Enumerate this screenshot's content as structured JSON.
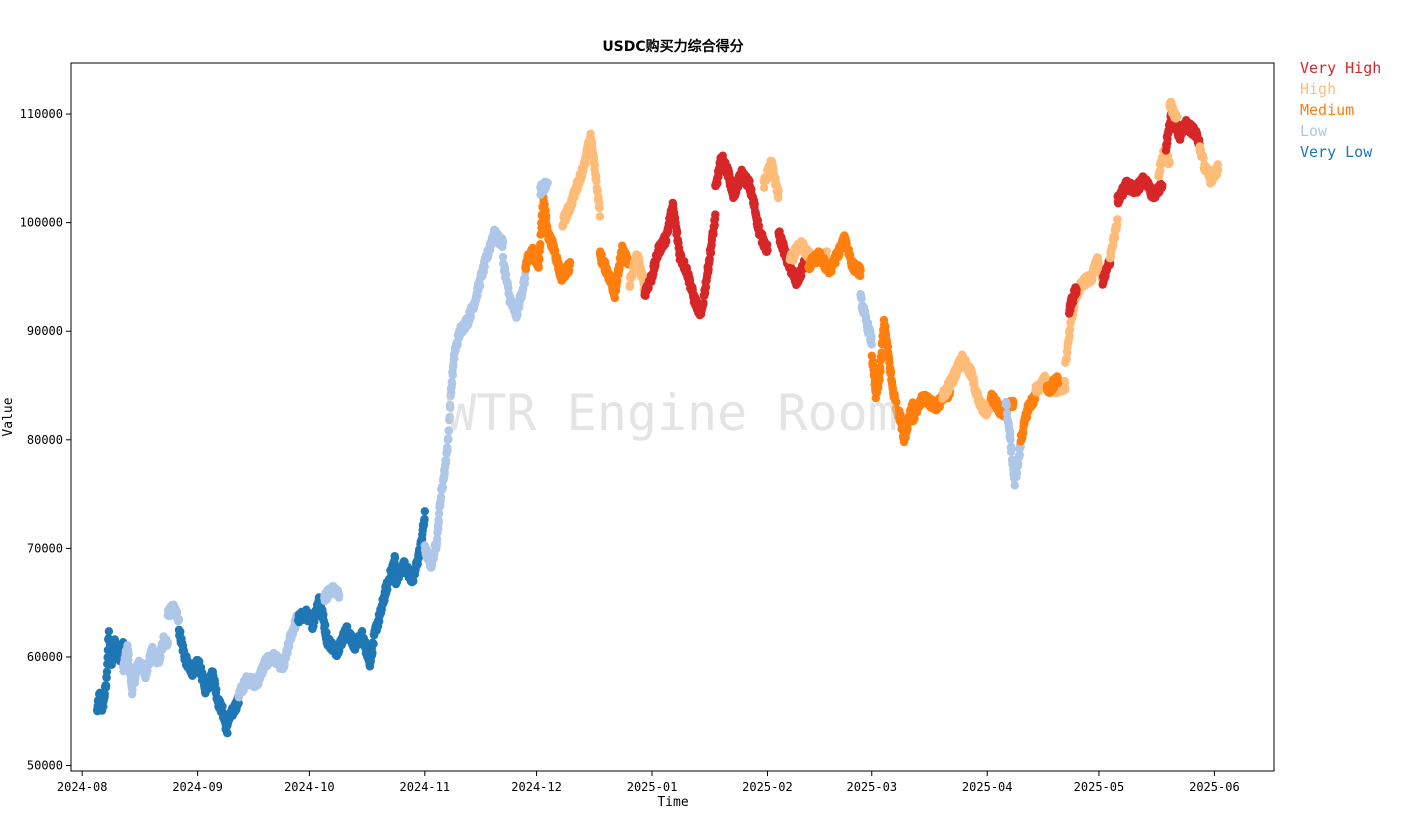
{
  "chart_data": {
    "type": "scatter",
    "title": "USDC购买力综合得分",
    "xlabel": "Time",
    "ylabel": "Value",
    "watermark": "WTR Engine Room",
    "xlim": [
      "2024-07-29",
      "2025-06-17"
    ],
    "ylim": [
      49500,
      114700
    ],
    "x_ticks": [
      "2024-08-01",
      "2024-09-01",
      "2024-10-01",
      "2024-11-01",
      "2024-12-01",
      "2025-01-01",
      "2025-02-01",
      "2025-03-01",
      "2025-04-01",
      "2025-05-01",
      "2025-06-01"
    ],
    "x_tick_labels": [
      "2024-08",
      "2024-09",
      "2024-10",
      "2024-11",
      "2024-12",
      "2025-01",
      "2025-02",
      "2025-03",
      "2025-04",
      "2025-05",
      "2025-06"
    ],
    "y_ticks": [
      50000,
      60000,
      70000,
      80000,
      90000,
      100000,
      110000
    ],
    "y_tick_labels": [
      "50000",
      "60000",
      "70000",
      "80000",
      "90000",
      "100000",
      "110000"
    ],
    "legend_position": "outside-top-right",
    "categories": [
      "Very High",
      "High",
      "Medium",
      "Low",
      "Very Low"
    ],
    "colors": {
      "Very High": "#d62728",
      "High": "#ffbb78",
      "Medium": "#ff7f0e",
      "Low": "#aec7e8",
      "Very Low": "#1f77b4"
    },
    "series": [
      {
        "start": "2024-08-05",
        "end": "2024-08-12",
        "category": "Very Low",
        "path": [
          [
            0,
            55000
          ],
          [
            0.1,
            56500
          ],
          [
            0.2,
            55200
          ],
          [
            0.35,
            57500
          ],
          [
            0.45,
            62200
          ],
          [
            0.55,
            59500
          ],
          [
            0.7,
            61500
          ],
          [
            0.85,
            59800
          ],
          [
            1,
            61000
          ]
        ]
      },
      {
        "start": "2024-08-12",
        "end": "2024-08-24",
        "category": "Low",
        "path": [
          [
            0,
            59000
          ],
          [
            0.1,
            60800
          ],
          [
            0.2,
            57000
          ],
          [
            0.35,
            59500
          ],
          [
            0.5,
            58500
          ],
          [
            0.65,
            60500
          ],
          [
            0.8,
            59500
          ],
          [
            0.9,
            61500
          ],
          [
            1,
            61000
          ]
        ]
      },
      {
        "start": "2024-08-24",
        "end": "2024-08-27",
        "category": "Low",
        "path": [
          [
            0,
            64000
          ],
          [
            0.5,
            64500
          ],
          [
            1,
            63500
          ]
        ]
      },
      {
        "start": "2024-08-27",
        "end": "2024-09-09",
        "category": "Very Low",
        "path": [
          [
            0,
            62500
          ],
          [
            0.12,
            60000
          ],
          [
            0.25,
            58500
          ],
          [
            0.4,
            59500
          ],
          [
            0.55,
            57000
          ],
          [
            0.7,
            58500
          ],
          [
            0.8,
            56000
          ],
          [
            0.9,
            55000
          ],
          [
            1,
            53000
          ]
        ]
      },
      {
        "start": "2024-09-09",
        "end": "2024-09-12",
        "category": "Very Low",
        "path": [
          [
            0,
            54000
          ],
          [
            0.5,
            55000
          ],
          [
            1,
            56000
          ]
        ]
      },
      {
        "start": "2024-09-12",
        "end": "2024-09-28",
        "category": "Low",
        "path": [
          [
            0,
            56500
          ],
          [
            0.15,
            58000
          ],
          [
            0.3,
            57500
          ],
          [
            0.45,
            59500
          ],
          [
            0.6,
            60000
          ],
          [
            0.75,
            59000
          ],
          [
            0.88,
            62000
          ],
          [
            1,
            63800
          ]
        ]
      },
      {
        "start": "2024-09-28",
        "end": "2024-10-24",
        "category": "Very Low",
        "path": [
          [
            0,
            63500
          ],
          [
            0.08,
            64000
          ],
          [
            0.15,
            63000
          ],
          [
            0.22,
            65500
          ],
          [
            0.3,
            61500
          ],
          [
            0.4,
            60500
          ],
          [
            0.5,
            62500
          ],
          [
            0.58,
            61000
          ],
          [
            0.66,
            62000
          ],
          [
            0.74,
            59500
          ],
          [
            0.8,
            62500
          ],
          [
            0.85,
            64000
          ],
          [
            0.9,
            66000
          ],
          [
            1,
            69000
          ]
        ]
      },
      {
        "start": "2024-10-05",
        "end": "2024-10-09",
        "category": "Low",
        "path": [
          [
            0,
            65500
          ],
          [
            0.5,
            66200
          ],
          [
            1,
            65800
          ]
        ]
      },
      {
        "start": "2024-10-24",
        "end": "2024-11-01",
        "category": "Very Low",
        "path": [
          [
            0,
            67000
          ],
          [
            0.3,
            68500
          ],
          [
            0.6,
            67000
          ],
          [
            0.85,
            70000
          ],
          [
            1,
            73000
          ]
        ]
      },
      {
        "start": "2024-11-01",
        "end": "2024-11-22",
        "category": "Low",
        "path": [
          [
            0,
            70000
          ],
          [
            0.08,
            68500
          ],
          [
            0.15,
            70500
          ],
          [
            0.2,
            74500
          ],
          [
            0.25,
            77000
          ],
          [
            0.3,
            80000
          ],
          [
            0.33,
            84000
          ],
          [
            0.38,
            88000
          ],
          [
            0.45,
            90000
          ],
          [
            0.55,
            91000
          ],
          [
            0.65,
            93000
          ],
          [
            0.72,
            95000
          ],
          [
            0.8,
            97000
          ],
          [
            0.88,
            99000
          ],
          [
            1,
            98000
          ]
        ]
      },
      {
        "start": "2024-11-22",
        "end": "2024-11-28",
        "category": "Low",
        "path": [
          [
            0,
            96500
          ],
          [
            0.3,
            93000
          ],
          [
            0.6,
            91500
          ],
          [
            1,
            95000
          ]
        ]
      },
      {
        "start": "2024-11-28",
        "end": "2024-12-10",
        "category": "Medium",
        "path": [
          [
            0,
            96000
          ],
          [
            0.15,
            97500
          ],
          [
            0.3,
            96000
          ],
          [
            0.4,
            102500
          ],
          [
            0.5,
            99000
          ],
          [
            0.65,
            97500
          ],
          [
            0.8,
            95000
          ],
          [
            1,
            96000
          ]
        ]
      },
      {
        "start": "2024-12-02",
        "end": "2024-12-04",
        "category": "Low",
        "path": [
          [
            0,
            103000
          ],
          [
            1,
            103500
          ]
        ]
      },
      {
        "start": "2024-12-08",
        "end": "2024-12-18",
        "category": "High",
        "path": [
          [
            0,
            100000
          ],
          [
            0.2,
            101500
          ],
          [
            0.4,
            103500
          ],
          [
            0.6,
            105500
          ],
          [
            0.75,
            108000
          ],
          [
            0.9,
            104000
          ],
          [
            1,
            101000
          ]
        ]
      },
      {
        "start": "2024-12-18",
        "end": "2024-12-26",
        "category": "Medium",
        "path": [
          [
            0,
            97000
          ],
          [
            0.25,
            95500
          ],
          [
            0.5,
            93500
          ],
          [
            0.75,
            97500
          ],
          [
            1,
            96000
          ]
        ]
      },
      {
        "start": "2024-12-26",
        "end": "2024-12-30",
        "category": "High",
        "path": [
          [
            0,
            94500
          ],
          [
            0.5,
            97000
          ],
          [
            1,
            94000
          ]
        ]
      },
      {
        "start": "2024-12-30",
        "end": "2025-01-18",
        "category": "Very High",
        "path": [
          [
            0,
            93500
          ],
          [
            0.1,
            95000
          ],
          [
            0.2,
            97500
          ],
          [
            0.3,
            98500
          ],
          [
            0.4,
            101500
          ],
          [
            0.5,
            97000
          ],
          [
            0.6,
            95500
          ],
          [
            0.7,
            93000
          ],
          [
            0.8,
            91500
          ],
          [
            0.88,
            95000
          ],
          [
            1,
            100500
          ]
        ]
      },
      {
        "start": "2025-01-18",
        "end": "2025-02-01",
        "category": "Very High",
        "path": [
          [
            0,
            103000
          ],
          [
            0.12,
            106000
          ],
          [
            0.25,
            104500
          ],
          [
            0.35,
            102500
          ],
          [
            0.5,
            104500
          ],
          [
            0.65,
            103500
          ],
          [
            0.75,
            101500
          ],
          [
            0.85,
            99000
          ],
          [
            1,
            97500
          ]
        ]
      },
      {
        "start": "2025-01-31",
        "end": "2025-02-04",
        "category": "High",
        "path": [
          [
            0,
            103500
          ],
          [
            0.5,
            105500
          ],
          [
            1,
            102500
          ]
        ]
      },
      {
        "start": "2025-02-04",
        "end": "2025-02-12",
        "category": "Very High",
        "path": [
          [
            0,
            99000
          ],
          [
            0.3,
            96500
          ],
          [
            0.6,
            94500
          ],
          [
            1,
            97000
          ]
        ]
      },
      {
        "start": "2025-02-07",
        "end": "2025-02-17",
        "category": "High",
        "path": [
          [
            0,
            96500
          ],
          [
            0.3,
            98000
          ],
          [
            0.6,
            96500
          ],
          [
            1,
            97000
          ]
        ]
      },
      {
        "start": "2025-02-12",
        "end": "2025-02-26",
        "category": "Medium",
        "path": [
          [
            0,
            96000
          ],
          [
            0.2,
            97000
          ],
          [
            0.4,
            95500
          ],
          [
            0.55,
            97000
          ],
          [
            0.7,
            98500
          ],
          [
            0.85,
            96000
          ],
          [
            1,
            95500
          ]
        ]
      },
      {
        "start": "2025-02-26",
        "end": "2025-03-01",
        "category": "Low",
        "path": [
          [
            0,
            93000
          ],
          [
            1,
            89000
          ]
        ]
      },
      {
        "start": "2025-03-01",
        "end": "2025-03-12",
        "category": "Medium",
        "path": [
          [
            0,
            88000
          ],
          [
            0.1,
            84000
          ],
          [
            0.2,
            86000
          ],
          [
            0.3,
            91000
          ],
          [
            0.4,
            88000
          ],
          [
            0.5,
            85000
          ],
          [
            0.6,
            83000
          ],
          [
            0.7,
            82000
          ],
          [
            0.8,
            80000
          ],
          [
            0.9,
            82000
          ],
          [
            1,
            83000
          ]
        ]
      },
      {
        "start": "2025-03-12",
        "end": "2025-03-22",
        "category": "Medium",
        "path": [
          [
            0,
            82000
          ],
          [
            0.3,
            84000
          ],
          [
            0.6,
            83000
          ],
          [
            1,
            84500
          ]
        ]
      },
      {
        "start": "2025-03-20",
        "end": "2025-04-02",
        "category": "High",
        "path": [
          [
            0,
            84000
          ],
          [
            0.2,
            85500
          ],
          [
            0.4,
            87500
          ],
          [
            0.6,
            86000
          ],
          [
            0.75,
            83500
          ],
          [
            0.9,
            82500
          ],
          [
            1,
            83500
          ]
        ]
      },
      {
        "start": "2025-04-02",
        "end": "2025-04-08",
        "category": "Medium",
        "path": [
          [
            0,
            84000
          ],
          [
            0.5,
            82500
          ],
          [
            1,
            83500
          ]
        ]
      },
      {
        "start": "2025-04-06",
        "end": "2025-04-10",
        "category": "Low",
        "path": [
          [
            0,
            83500
          ],
          [
            0.3,
            80000
          ],
          [
            0.6,
            76000
          ],
          [
            1,
            79500
          ]
        ]
      },
      {
        "start": "2025-04-10",
        "end": "2025-04-14",
        "category": "Medium",
        "path": [
          [
            0,
            80000
          ],
          [
            0.5,
            83000
          ],
          [
            1,
            84000
          ]
        ]
      },
      {
        "start": "2025-04-14",
        "end": "2025-04-22",
        "category": "High",
        "path": [
          [
            0,
            84500
          ],
          [
            0.3,
            85500
          ],
          [
            0.6,
            84500
          ],
          [
            1,
            85000
          ]
        ]
      },
      {
        "start": "2025-04-17",
        "end": "2025-04-20",
        "category": "Medium",
        "path": [
          [
            0,
            84500
          ],
          [
            1,
            85500
          ]
        ]
      },
      {
        "start": "2025-04-22",
        "end": "2025-05-02",
        "category": "High",
        "path": [
          [
            0,
            87000
          ],
          [
            0.15,
            91000
          ],
          [
            0.3,
            93500
          ],
          [
            0.5,
            94500
          ],
          [
            0.7,
            95000
          ],
          [
            0.85,
            96500
          ],
          [
            1,
            95000
          ]
        ]
      },
      {
        "start": "2025-04-23",
        "end": "2025-04-25",
        "category": "Very High",
        "path": [
          [
            0,
            92000
          ],
          [
            1,
            94000
          ]
        ]
      },
      {
        "start": "2025-05-02",
        "end": "2025-05-04",
        "category": "Very High",
        "path": [
          [
            0,
            94500
          ],
          [
            1,
            96500
          ]
        ]
      },
      {
        "start": "2025-05-04",
        "end": "2025-05-06",
        "category": "High",
        "path": [
          [
            0,
            97000
          ],
          [
            1,
            100000
          ]
        ]
      },
      {
        "start": "2025-05-06",
        "end": "2025-05-18",
        "category": "Very High",
        "path": [
          [
            0,
            102000
          ],
          [
            0.2,
            103500
          ],
          [
            0.4,
            103000
          ],
          [
            0.6,
            104000
          ],
          [
            0.8,
            102500
          ],
          [
            1,
            103500
          ]
        ]
      },
      {
        "start": "2025-05-17",
        "end": "2025-05-20",
        "category": "High",
        "path": [
          [
            0,
            104500
          ],
          [
            0.5,
            106500
          ],
          [
            1,
            105500
          ]
        ]
      },
      {
        "start": "2025-05-19",
        "end": "2025-05-28",
        "category": "Very High",
        "path": [
          [
            0,
            107000
          ],
          [
            0.2,
            110500
          ],
          [
            0.4,
            108000
          ],
          [
            0.6,
            109000
          ],
          [
            0.8,
            108500
          ],
          [
            1,
            107500
          ]
        ]
      },
      {
        "start": "2025-05-20",
        "end": "2025-05-22",
        "category": "High",
        "path": [
          [
            0,
            111000
          ],
          [
            1,
            109500
          ]
        ]
      },
      {
        "start": "2025-05-28",
        "end": "2025-06-02",
        "category": "High",
        "path": [
          [
            0,
            107000
          ],
          [
            0.3,
            105000
          ],
          [
            0.6,
            104000
          ],
          [
            1,
            105000
          ]
        ]
      }
    ]
  }
}
